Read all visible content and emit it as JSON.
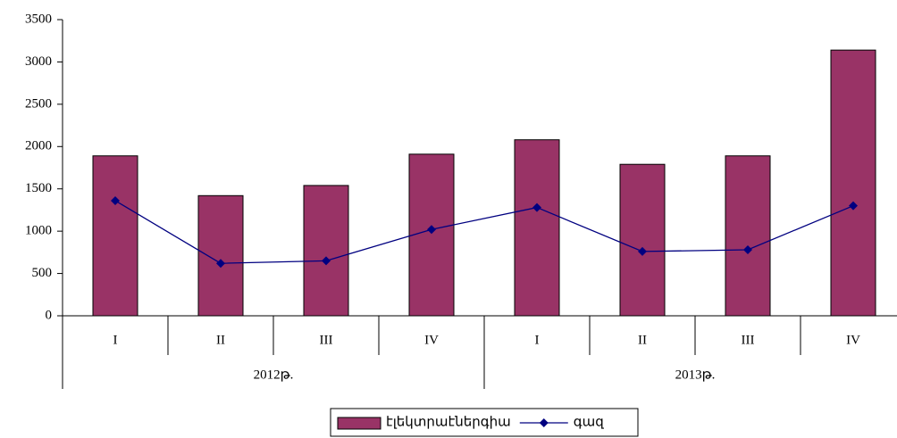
{
  "chart_data": {
    "type": "bar_line",
    "categories": [
      "I",
      "II",
      "III",
      "IV",
      "I",
      "II",
      "III",
      "IV"
    ],
    "groups": [
      {
        "name": "2012թ.",
        "count": 4
      },
      {
        "name": "2013թ.",
        "count": 4
      }
    ],
    "series": [
      {
        "name": "էլեկտրաէներգիա",
        "type": "bar",
        "color": "#993366",
        "values": [
          1890,
          1420,
          1540,
          1910,
          2080,
          1790,
          1890,
          3140
        ]
      },
      {
        "name": "գազ",
        "type": "line",
        "color": "#000080",
        "values": [
          1360,
          620,
          650,
          1020,
          1280,
          760,
          780,
          1300
        ]
      }
    ],
    "ylim": [
      0,
      3500
    ],
    "yticks": [
      0,
      500,
      1000,
      1500,
      2000,
      2500,
      3000,
      3500
    ],
    "legend": "bottom"
  }
}
